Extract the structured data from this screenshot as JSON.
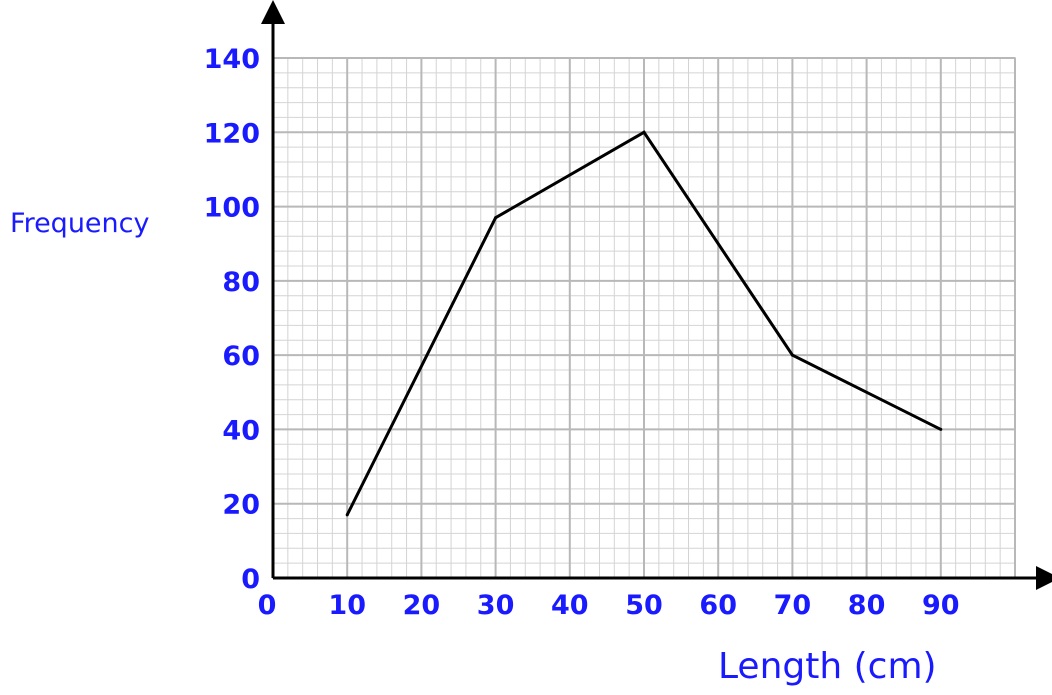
{
  "chart_data": {
    "type": "line",
    "title": "",
    "xlabel": "Length (cm)",
    "ylabel": "Frequency",
    "x_tick_labels": [
      "0",
      "10",
      "20",
      "30",
      "40",
      "50",
      "60",
      "70",
      "80",
      "90"
    ],
    "y_tick_labels": [
      "0",
      "20",
      "40",
      "60",
      "80",
      "100",
      "120",
      "140"
    ],
    "xlim": [
      0,
      100
    ],
    "ylim": [
      0,
      140
    ],
    "grid": true,
    "series": [
      {
        "x": [
          10,
          30,
          50,
          70,
          90
        ],
        "y": [
          17,
          97,
          120,
          60,
          40
        ]
      }
    ],
    "colors": {
      "text": "#1a1aff",
      "line": "#000000",
      "grid_major": "#b8b8b8",
      "grid_minor": "#d4d4d4",
      "axis": "#000000"
    }
  }
}
